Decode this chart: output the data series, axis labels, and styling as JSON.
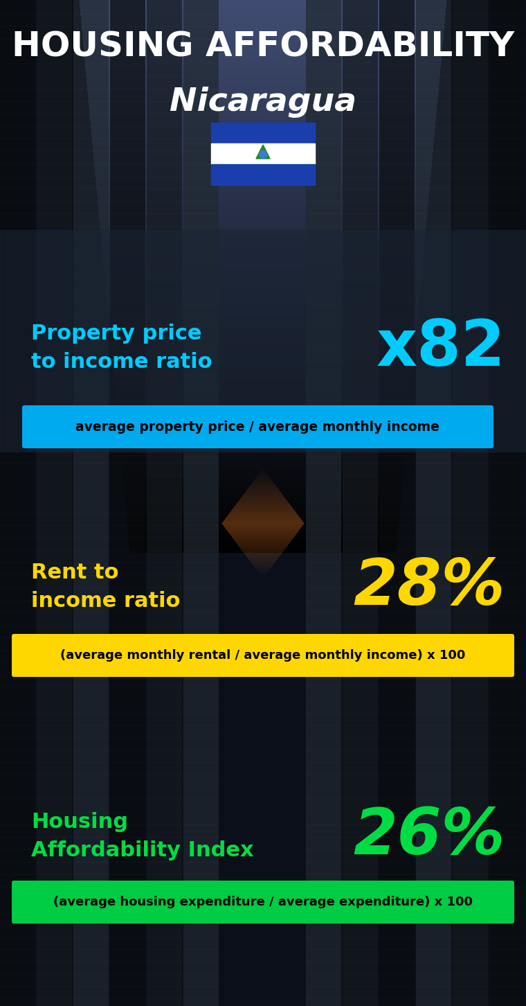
{
  "title_line1": "HOUSING AFFORDABILITY",
  "title_line2": "Nicaragua",
  "background_color": "#0a1018",
  "section1_label": "Property price\nto income ratio",
  "section1_value": "x82",
  "section1_label_color": "#00ccff",
  "section1_value_color": "#00ccff",
  "section1_formula": "average property price / average monthly income",
  "section1_formula_bg": "#00aaee",
  "section2_label": "Rent to\nincome ratio",
  "section2_value": "28%",
  "section2_label_color": "#ffd700",
  "section2_value_color": "#ffd700",
  "section2_formula": "(average monthly rental / average monthly income) x 100",
  "section2_formula_bg": "#ffd700",
  "section3_label": "Housing\nAffordability Index",
  "section3_value": "26%",
  "section3_label_color": "#00dd44",
  "section3_value_color": "#00dd44",
  "section3_formula": "(average housing expenditure / average expenditure) x 100",
  "section3_formula_bg": "#00cc44",
  "title_color": "#ffffff",
  "subtitle_color": "#ffffff",
  "formula_text_color": "#000000",
  "flag_blue": "#1a3fad",
  "flag_white": "#ffffff"
}
